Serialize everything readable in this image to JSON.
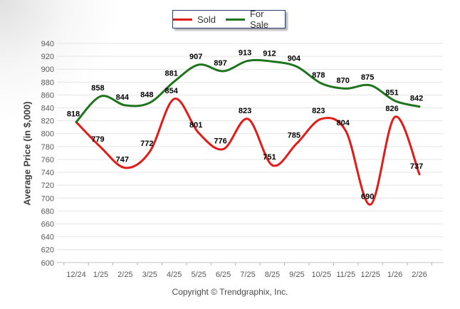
{
  "legend": {
    "items": [
      {
        "label": "Sold",
        "color": "#e11b17"
      },
      {
        "label": "For Sale",
        "color": "#1e751e"
      }
    ]
  },
  "copyright": "Copyright © Trendgraphix, Inc.",
  "chart_data": {
    "type": "line",
    "title": "",
    "xlabel": "",
    "ylabel": "Average Price (in $,000)",
    "categories": [
      "12/24",
      "1/25",
      "2/25",
      "3/25",
      "4/25",
      "5/25",
      "6/25",
      "7/25",
      "8/25",
      "9/25",
      "10/25",
      "11/25",
      "12/25",
      "1/26",
      "2/26"
    ],
    "series": [
      {
        "name": "Sold",
        "color": "#e11b17",
        "values": [
          818,
          779,
          747,
          772,
          854,
          801,
          776,
          823,
          751,
          785,
          823,
          804,
          690,
          826,
          737
        ],
        "skip_labels": []
      },
      {
        "name": "For Sale",
        "color": "#1e751e",
        "values": [
          818,
          858,
          844,
          848,
          881,
          907,
          897,
          913,
          912,
          904,
          878,
          870,
          875,
          851,
          842
        ],
        "skip_labels": [
          0
        ]
      }
    ],
    "ylim": [
      600,
      940
    ],
    "ytick_step": 20,
    "grid": "horizontal",
    "legend_position": "top-center",
    "smooth": true,
    "gridline_color": "#e4e4e4",
    "axis_line_color": "#c4c4c4",
    "tick_color": "#b4b4b4",
    "tick_label_color": "#595959",
    "data_label_color": "#000000"
  }
}
